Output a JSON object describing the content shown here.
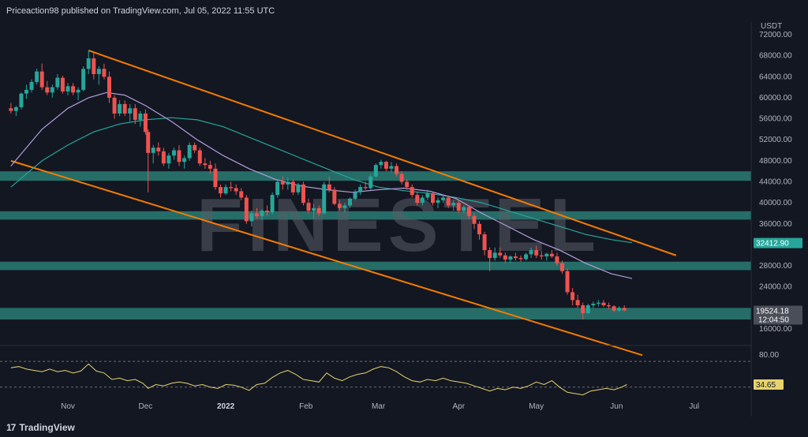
{
  "header": {
    "publisher_line": "Priceaction98 published on TradingView.com, Jul 05, 2022 11:55 UTC"
  },
  "footer": {
    "brand": "TradingView",
    "brand_mark": "17"
  },
  "watermark": "FINESTEL",
  "colors": {
    "background": "#131722",
    "bull": "#26a69a",
    "bear": "#ef5350",
    "zone": "#2e8b80",
    "channel": "#f57c00",
    "ma_purple": "#b39ddb",
    "ma_green": "#26a69a",
    "rsi": "#e6d36b"
  },
  "chart_data": {
    "type": "candlestick",
    "currency_label": "USDT",
    "x_tick_labels": [
      "Nov",
      "Dec",
      "2022",
      "Feb",
      "Mar",
      "Apr",
      "May",
      "Jun",
      "Jul"
    ],
    "y_tick_labels": [
      "72000.00",
      "68000.00",
      "64000.00",
      "60000.00",
      "56000.00",
      "52000.00",
      "48000.00",
      "44000.00",
      "40000.00",
      "36000.00",
      "28000.00",
      "24000.00",
      "16000.00"
    ],
    "ylim": [
      14000,
      72000
    ],
    "x_range_days": [
      -22,
      250
    ],
    "support_zones": [
      {
        "low": 44200,
        "high": 46000
      },
      {
        "low": 36800,
        "high": 38400
      },
      {
        "low": 27200,
        "high": 28800
      },
      {
        "low": 17800,
        "high": 20000
      }
    ],
    "channel_lines": [
      {
        "start": {
          "day": 8,
          "price": 69000
        },
        "end": {
          "day": 235,
          "price": 30000
        }
      },
      {
        "start": {
          "day": -22,
          "price": 48000
        },
        "end": {
          "day": 222,
          "price": 11000
        }
      }
    ],
    "candles": [
      [
        -22,
        58000,
        59000,
        57000,
        57500
      ],
      [
        -20,
        57500,
        58500,
        56500,
        58200
      ],
      [
        -18,
        58200,
        61000,
        57800,
        60800
      ],
      [
        -16,
        60800,
        62500,
        59800,
        61500
      ],
      [
        -14,
        61500,
        63500,
        61000,
        63000
      ],
      [
        -12,
        63000,
        65500,
        62500,
        65000
      ],
      [
        -10,
        65000,
        66500,
        61500,
        62000
      ],
      [
        -8,
        62000,
        63200,
        60500,
        61000
      ],
      [
        -6,
        61000,
        62500,
        60000,
        62000
      ],
      [
        -4,
        62000,
        64500,
        61500,
        63800
      ],
      [
        -2,
        63800,
        64200,
        60800,
        61200
      ],
      [
        0,
        61200,
        62800,
        60500,
        62200
      ],
      [
        2,
        62200,
        62800,
        60500,
        61000
      ],
      [
        4,
        61000,
        62000,
        59500,
        61500
      ],
      [
        6,
        61500,
        66000,
        61200,
        65500
      ],
      [
        8,
        65500,
        69000,
        64500,
        67500
      ],
      [
        10,
        67500,
        68500,
        63500,
        64500
      ],
      [
        12,
        64500,
        66000,
        62500,
        65500
      ],
      [
        14,
        65500,
        66500,
        63500,
        64000
      ],
      [
        16,
        64000,
        65000,
        59000,
        60000
      ],
      [
        18,
        60000,
        60500,
        56000,
        57000
      ],
      [
        20,
        57000,
        59500,
        56500,
        58800
      ],
      [
        22,
        58800,
        59500,
        56500,
        57000
      ],
      [
        24,
        57000,
        58800,
        55500,
        58000
      ],
      [
        26,
        58000,
        58800,
        55000,
        55800
      ],
      [
        28,
        55800,
        57500,
        54500,
        57000
      ],
      [
        30,
        57000,
        57800,
        53000,
        53500
      ],
      [
        31,
        53500,
        54000,
        42000,
        49500
      ],
      [
        33,
        49500,
        51000,
        47500,
        50500
      ],
      [
        35,
        50500,
        51500,
        49000,
        49800
      ],
      [
        37,
        49800,
        50500,
        47000,
        47500
      ],
      [
        39,
        47500,
        49500,
        46500,
        49000
      ],
      [
        41,
        49000,
        50500,
        48200,
        50000
      ],
      [
        43,
        50000,
        51000,
        47000,
        47800
      ],
      [
        45,
        47800,
        49000,
        46500,
        48500
      ],
      [
        47,
        48500,
        51500,
        48000,
        51000
      ],
      [
        49,
        51000,
        51500,
        49500,
        50000
      ],
      [
        51,
        50000,
        50500,
        47000,
        47500
      ],
      [
        53,
        47500,
        48500,
        46500,
        47200
      ],
      [
        55,
        47200,
        48000,
        45500,
        46500
      ],
      [
        57,
        46500,
        47500,
        42500,
        43000
      ],
      [
        59,
        43000,
        43500,
        41000,
        41800
      ],
      [
        61,
        41800,
        43500,
        41500,
        43000
      ],
      [
        63,
        43000,
        44000,
        42200,
        42800
      ],
      [
        65,
        42800,
        43500,
        41500,
        42200
      ],
      [
        67,
        42200,
        42800,
        40500,
        41000
      ],
      [
        69,
        41000,
        41500,
        36000,
        36500
      ],
      [
        71,
        36500,
        38500,
        35500,
        38000
      ],
      [
        73,
        38000,
        39000,
        37000,
        37500
      ],
      [
        75,
        37500,
        38800,
        36800,
        38500
      ],
      [
        77,
        38500,
        39500,
        37500,
        38200
      ],
      [
        79,
        38200,
        42000,
        37800,
        41500
      ],
      [
        81,
        41500,
        44500,
        41000,
        44000
      ],
      [
        83,
        44000,
        45000,
        42500,
        43500
      ],
      [
        85,
        43500,
        44800,
        42500,
        44000
      ],
      [
        87,
        44000,
        44500,
        41500,
        42000
      ],
      [
        89,
        42000,
        43800,
        41500,
        43500
      ],
      [
        91,
        43500,
        44000,
        39500,
        40000
      ],
      [
        93,
        40000,
        40800,
        38000,
        38500
      ],
      [
        95,
        38500,
        39800,
        37000,
        39000
      ],
      [
        97,
        39000,
        39500,
        37500,
        38000
      ],
      [
        99,
        38000,
        44000,
        37800,
        43500
      ],
      [
        101,
        43500,
        45000,
        42000,
        42500
      ],
      [
        103,
        42500,
        43000,
        39500,
        39800
      ],
      [
        105,
        39800,
        40500,
        38500,
        39000
      ],
      [
        107,
        39000,
        40000,
        38200,
        39500
      ],
      [
        109,
        39500,
        41000,
        39000,
        40800
      ],
      [
        111,
        40800,
        42500,
        40500,
        42000
      ],
      [
        113,
        42000,
        43500,
        41500,
        43000
      ],
      [
        115,
        43000,
        44000,
        42500,
        42800
      ],
      [
        117,
        42800,
        45500,
        42500,
        45000
      ],
      [
        119,
        45000,
        47500,
        44800,
        47200
      ],
      [
        121,
        47200,
        48200,
        46500,
        47800
      ],
      [
        123,
        47800,
        48000,
        46000,
        46500
      ],
      [
        125,
        46500,
        47800,
        45800,
        47000
      ],
      [
        127,
        47000,
        47500,
        45000,
        45500
      ],
      [
        129,
        45500,
        46000,
        43500,
        44000
      ],
      [
        131,
        44000,
        44500,
        42500,
        43000
      ],
      [
        133,
        43000,
        43500,
        41000,
        41500
      ],
      [
        135,
        41500,
        42000,
        39500,
        40000
      ],
      [
        137,
        40000,
        41500,
        39500,
        41000
      ],
      [
        139,
        41000,
        42500,
        40500,
        41800
      ],
      [
        141,
        41800,
        42000,
        39500,
        40000
      ],
      [
        143,
        40000,
        41000,
        39000,
        40500
      ],
      [
        145,
        40500,
        41500,
        40000,
        41000
      ],
      [
        147,
        41000,
        41200,
        39000,
        39500
      ],
      [
        149,
        39500,
        40500,
        38500,
        40000
      ],
      [
        151,
        40000,
        40500,
        38000,
        38500
      ],
      [
        153,
        38500,
        39500,
        38000,
        39200
      ],
      [
        155,
        39200,
        39500,
        37000,
        37500
      ],
      [
        157,
        37500,
        38000,
        35000,
        36000
      ],
      [
        159,
        36000,
        36500,
        33000,
        34000
      ],
      [
        161,
        34000,
        34500,
        30000,
        31000
      ],
      [
        163,
        31000,
        31500,
        27000,
        29500
      ],
      [
        165,
        29500,
        31500,
        29000,
        30500
      ],
      [
        167,
        30500,
        31500,
        29500,
        30000
      ],
      [
        169,
        30000,
        30500,
        28500,
        29200
      ],
      [
        171,
        29200,
        30000,
        28500,
        29800
      ],
      [
        173,
        29800,
        30500,
        29000,
        29500
      ],
      [
        175,
        29500,
        30000,
        28800,
        29300
      ],
      [
        177,
        29300,
        30500,
        29000,
        30200
      ],
      [
        179,
        30200,
        31500,
        29500,
        31000
      ],
      [
        181,
        31000,
        31800,
        29500,
        30000
      ],
      [
        183,
        30000,
        30800,
        29200,
        29800
      ],
      [
        185,
        29800,
        30500,
        29000,
        30300
      ],
      [
        187,
        30300,
        31000,
        29500,
        29800
      ],
      [
        189,
        29800,
        30500,
        28000,
        28500
      ],
      [
        191,
        28500,
        29000,
        26500,
        27000
      ],
      [
        193,
        27000,
        27500,
        22500,
        23000
      ],
      [
        195,
        23000,
        23800,
        20500,
        21500
      ],
      [
        197,
        21500,
        22500,
        20000,
        20500
      ],
      [
        199,
        20500,
        21000,
        17800,
        19000
      ],
      [
        201,
        19000,
        20800,
        18800,
        20500
      ],
      [
        203,
        20500,
        21200,
        20000,
        20800
      ],
      [
        205,
        20800,
        21500,
        20300,
        21000
      ],
      [
        207,
        21000,
        21500,
        20200,
        20500
      ],
      [
        209,
        20500,
        21000,
        19800,
        20300
      ],
      [
        211,
        20300,
        20500,
        19200,
        19500
      ],
      [
        213,
        19500,
        20300,
        19200,
        20000
      ],
      [
        215,
        20000,
        20500,
        19300,
        19524
      ]
    ],
    "ma_purple_points": [
      [
        -22,
        47000
      ],
      [
        -10,
        54000
      ],
      [
        0,
        58000
      ],
      [
        8,
        60000
      ],
      [
        15,
        61000
      ],
      [
        22,
        60500
      ],
      [
        30,
        58500
      ],
      [
        40,
        55500
      ],
      [
        50,
        52000
      ],
      [
        60,
        49000
      ],
      [
        70,
        46500
      ],
      [
        80,
        44500
      ],
      [
        90,
        43200
      ],
      [
        100,
        42500
      ],
      [
        110,
        42000
      ],
      [
        120,
        42500
      ],
      [
        130,
        42800
      ],
      [
        140,
        42200
      ],
      [
        150,
        40800
      ],
      [
        160,
        38000
      ],
      [
        170,
        35500
      ],
      [
        180,
        33000
      ],
      [
        190,
        31000
      ],
      [
        200,
        28500
      ],
      [
        210,
        26500
      ],
      [
        218,
        25600
      ]
    ],
    "ma_green_points": [
      [
        -22,
        43000
      ],
      [
        -10,
        48000
      ],
      [
        0,
        51000
      ],
      [
        10,
        53500
      ],
      [
        20,
        55000
      ],
      [
        30,
        55800
      ],
      [
        40,
        56200
      ],
      [
        50,
        55800
      ],
      [
        60,
        54500
      ],
      [
        70,
        52500
      ],
      [
        80,
        50500
      ],
      [
        90,
        48500
      ],
      [
        100,
        46500
      ],
      [
        110,
        44500
      ],
      [
        120,
        43000
      ],
      [
        130,
        42300
      ],
      [
        140,
        41800
      ],
      [
        150,
        41000
      ],
      [
        160,
        40000
      ],
      [
        170,
        38500
      ],
      [
        180,
        37000
      ],
      [
        190,
        35500
      ],
      [
        200,
        34000
      ],
      [
        210,
        33000
      ],
      [
        218,
        32412
      ]
    ],
    "price_badges": [
      {
        "label": "32412.90",
        "value": 32412.9,
        "color": "#26a69a"
      },
      {
        "label": "19524.18",
        "sublabel": "12:04:50",
        "value": 19524.18,
        "color": "#4a4e59"
      }
    ],
    "rsi": {
      "tick_labels": [
        "80.00",
        "34.65"
      ],
      "ylim": [
        15,
        90
      ],
      "guide_levels": [
        70,
        30
      ],
      "last_value": 34.65,
      "points": [
        [
          -22,
          60
        ],
        [
          -19,
          62
        ],
        [
          -16,
          58
        ],
        [
          -13,
          56
        ],
        [
          -10,
          54
        ],
        [
          -7,
          58
        ],
        [
          -4,
          54
        ],
        [
          -1,
          56
        ],
        [
          2,
          52
        ],
        [
          5,
          55
        ],
        [
          8,
          66
        ],
        [
          11,
          55
        ],
        [
          14,
          52
        ],
        [
          17,
          42
        ],
        [
          20,
          44
        ],
        [
          23,
          40
        ],
        [
          26,
          42
        ],
        [
          29,
          36
        ],
        [
          31,
          28
        ],
        [
          34,
          34
        ],
        [
          37,
          32
        ],
        [
          40,
          36
        ],
        [
          43,
          38
        ],
        [
          46,
          36
        ],
        [
          49,
          32
        ],
        [
          52,
          34
        ],
        [
          55,
          30
        ],
        [
          58,
          28
        ],
        [
          61,
          34
        ],
        [
          64,
          33
        ],
        [
          67,
          30
        ],
        [
          70,
          25
        ],
        [
          73,
          34
        ],
        [
          76,
          36
        ],
        [
          79,
          45
        ],
        [
          82,
          52
        ],
        [
          85,
          56
        ],
        [
          88,
          50
        ],
        [
          91,
          42
        ],
        [
          94,
          40
        ],
        [
          97,
          38
        ],
        [
          100,
          52
        ],
        [
          103,
          44
        ],
        [
          106,
          40
        ],
        [
          109,
          46
        ],
        [
          112,
          50
        ],
        [
          115,
          52
        ],
        [
          118,
          58
        ],
        [
          121,
          62
        ],
        [
          124,
          60
        ],
        [
          127,
          54
        ],
        [
          130,
          46
        ],
        [
          133,
          40
        ],
        [
          136,
          38
        ],
        [
          139,
          42
        ],
        [
          142,
          40
        ],
        [
          145,
          44
        ],
        [
          148,
          40
        ],
        [
          151,
          38
        ],
        [
          154,
          36
        ],
        [
          157,
          32
        ],
        [
          160,
          28
        ],
        [
          163,
          24
        ],
        [
          166,
          28
        ],
        [
          169,
          26
        ],
        [
          172,
          30
        ],
        [
          175,
          28
        ],
        [
          178,
          32
        ],
        [
          181,
          38
        ],
        [
          184,
          34
        ],
        [
          187,
          40
        ],
        [
          190,
          30
        ],
        [
          193,
          22
        ],
        [
          196,
          20
        ],
        [
          199,
          18
        ],
        [
          202,
          24
        ],
        [
          205,
          26
        ],
        [
          208,
          28
        ],
        [
          211,
          26
        ],
        [
          214,
          30
        ],
        [
          216,
          34
        ]
      ]
    }
  }
}
